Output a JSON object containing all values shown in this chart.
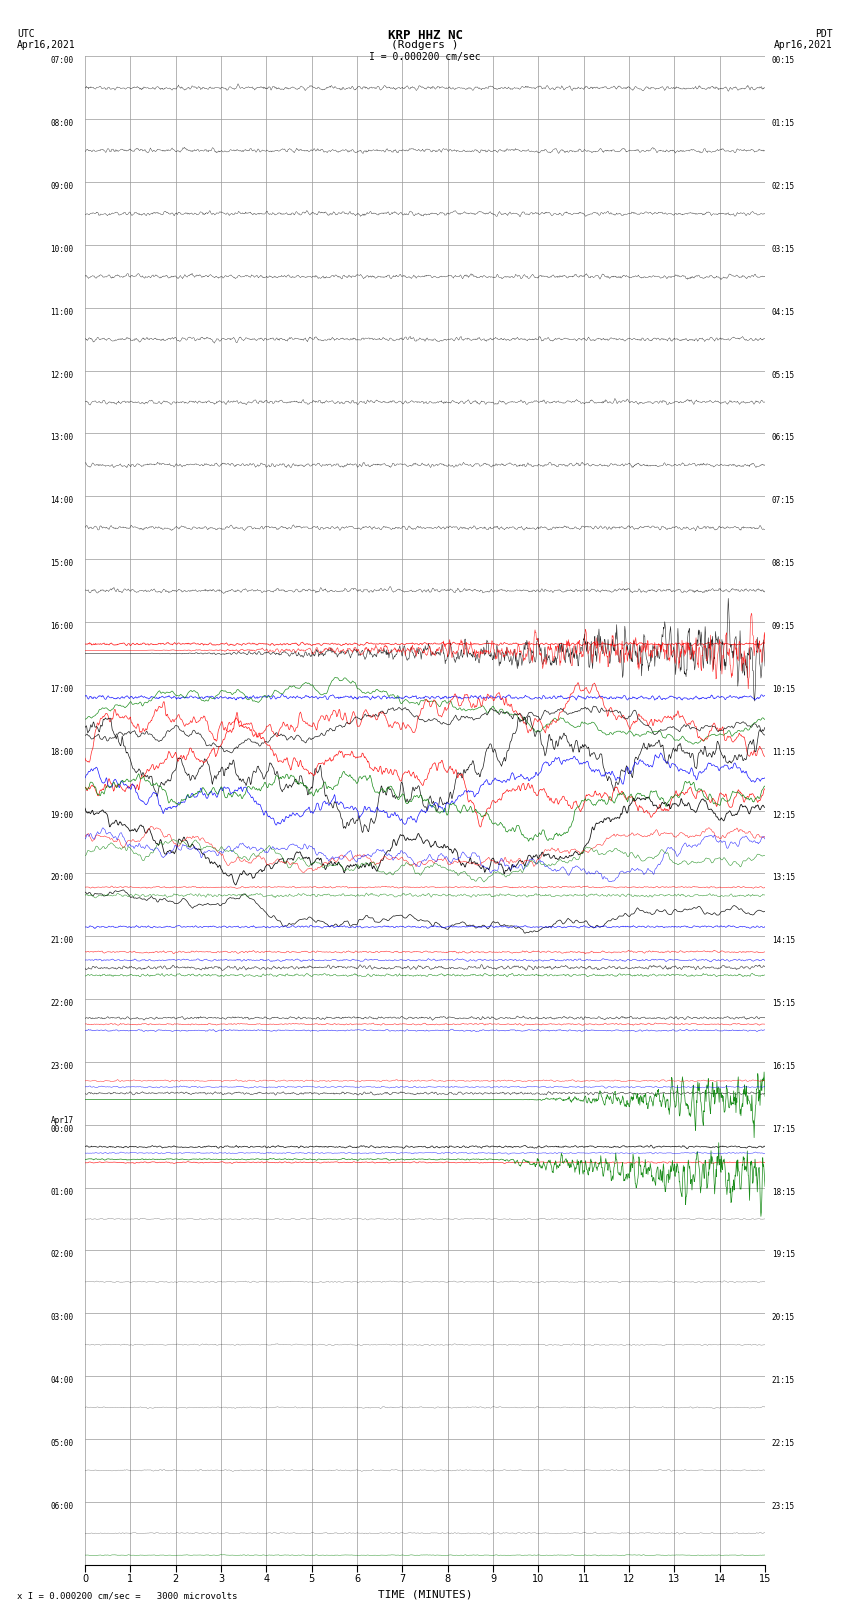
{
  "title_line1": "KRP HHZ NC",
  "title_line2": "(Rodgers )",
  "title_scale": "I = 0.000200 cm/sec",
  "left_label_line1": "UTC",
  "left_label_line2": "Apr16,2021",
  "right_label_line1": "PDT",
  "right_label_line2": "Apr16,2021",
  "bottom_label": "x I = 0.000200 cm/sec =   3000 microvolts",
  "xlabel": "TIME (MINUTES)",
  "xlim": [
    0,
    15
  ],
  "xticks": [
    0,
    1,
    2,
    3,
    4,
    5,
    6,
    7,
    8,
    9,
    10,
    11,
    12,
    13,
    14,
    15
  ],
  "utc_times_left": [
    "07:00",
    "08:00",
    "09:00",
    "10:00",
    "11:00",
    "12:00",
    "13:00",
    "14:00",
    "15:00",
    "16:00",
    "17:00",
    "18:00",
    "19:00",
    "20:00",
    "21:00",
    "22:00",
    "23:00",
    "Apr17\n00:00",
    "01:00",
    "02:00",
    "03:00",
    "04:00",
    "05:00",
    "06:00"
  ],
  "pdt_times_right": [
    "00:15",
    "01:15",
    "02:15",
    "03:15",
    "04:15",
    "05:15",
    "06:15",
    "07:15",
    "08:15",
    "09:15",
    "10:15",
    "11:15",
    "12:15",
    "13:15",
    "14:15",
    "15:15",
    "16:15",
    "17:15",
    "18:15",
    "19:15",
    "20:15",
    "21:15",
    "22:15",
    "23:15"
  ],
  "n_rows": 24,
  "fig_width": 8.5,
  "fig_height": 16.13,
  "bg_color": "#ffffff",
  "grid_color": "#999999",
  "trace_colors": [
    "black",
    "red",
    "blue",
    "green"
  ]
}
